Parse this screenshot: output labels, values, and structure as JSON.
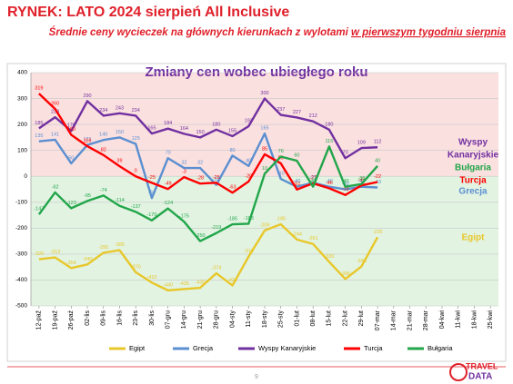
{
  "header": {
    "title": "RYNEK: LATO 2024 sierpień All Inclusive",
    "subtitle_parts": [
      "Średnie ceny wycieczek na głównych kierunkach z wylotami ",
      "w pierwszym tygodniu sierpnia"
    ]
  },
  "chart_data": {
    "type": "line",
    "title": "Zmiany cen wobec ubiegłego roku",
    "categories": [
      "12-paź",
      "19-paź",
      "26-paź",
      "02-lis",
      "09-lis",
      "16-lis",
      "23-lis",
      "30-lis",
      "07-gru",
      "14-gru",
      "21-gru",
      "28-gru",
      "04-sty",
      "11-sty",
      "18-sty",
      "25-sty",
      "01-lut",
      "08-lut",
      "15-lut",
      "22-lut",
      "29-lut",
      "07-mar",
      "14-mar",
      "21-mar",
      "28-mar",
      "04-kwi",
      "11-kwi",
      "18-kwi",
      "25-kwi"
    ],
    "series": [
      {
        "name": "Egipt",
        "color": "#e8c72a",
        "values": [
          -320,
          -313,
          -354,
          -340,
          -295,
          -285,
          -370,
          -410,
          -440,
          -435,
          -430,
          -374,
          -421,
          -310,
          -209,
          -185,
          -244,
          -261,
          -330,
          -396,
          -348,
          -235,
          null,
          null,
          null,
          null,
          null,
          null,
          null
        ]
      },
      {
        "name": "Grecja",
        "color": "#5b8fd0",
        "values": [
          135,
          141,
          50,
          121,
          140,
          150,
          125,
          -84,
          70,
          32,
          32,
          -33,
          80,
          40,
          165,
          -10,
          -40,
          -25,
          -40,
          -50,
          -40,
          -43,
          null,
          null,
          null,
          null,
          null,
          null,
          null
        ]
      },
      {
        "name": "Wyspy Kanaryjskie",
        "color": "#7030a0",
        "values": [
          185,
          228,
          175,
          290,
          234,
          243,
          234,
          165,
          184,
          164,
          150,
          180,
          155,
          193,
          300,
          237,
          227,
          212,
          180,
          70,
          109,
          112,
          null,
          null,
          null,
          null,
          null,
          null,
          null
        ]
      },
      {
        "name": "Turcja",
        "color": "#ff0000",
        "values": [
          319,
          260,
          160,
          116,
          82,
          39,
          0,
          -25,
          -49,
          -3,
          -28,
          -25,
          -63,
          -20,
          85,
          50,
          -51,
          -27,
          -46,
          -72,
          -35,
          -22,
          null,
          null,
          null,
          null,
          null,
          null,
          null
        ]
      },
      {
        "name": "Bułgaria",
        "color": "#22a64a",
        "values": [
          -147,
          -62,
          -123,
          -95,
          -74,
          -114,
          -137,
          -170,
          -124,
          -175,
          -250,
          -219,
          -185,
          -183,
          10,
          76,
          60,
          -40,
          115,
          -40,
          -30,
          40,
          null,
          null,
          null,
          null,
          null,
          null,
          null
        ]
      }
    ],
    "annotations": [
      {
        "text": "Wyspy",
        "color": "#7030a0"
      },
      {
        "text": "Kanaryjskie",
        "color": "#7030a0"
      },
      {
        "text": "Bułgaria",
        "color": "#22a64a"
      },
      {
        "text": "Turcja",
        "color": "#ff0000"
      },
      {
        "text": "Grecja",
        "color": "#5b8fd0"
      },
      {
        "text": "Egipt",
        "color": "#e8c72a"
      }
    ],
    "ylim": [
      -500,
      400
    ],
    "yticks": [
      -500,
      -400,
      -300,
      -200,
      -100,
      0,
      100,
      200,
      300,
      400
    ],
    "grid": true,
    "positive_band_color": "#fbe0e0",
    "negative_band_color": "#e2f3e2",
    "legend": "bottom"
  },
  "footer": {
    "page": "9",
    "logo_top": "TRAVEL",
    "logo_bottom": "DATA"
  }
}
